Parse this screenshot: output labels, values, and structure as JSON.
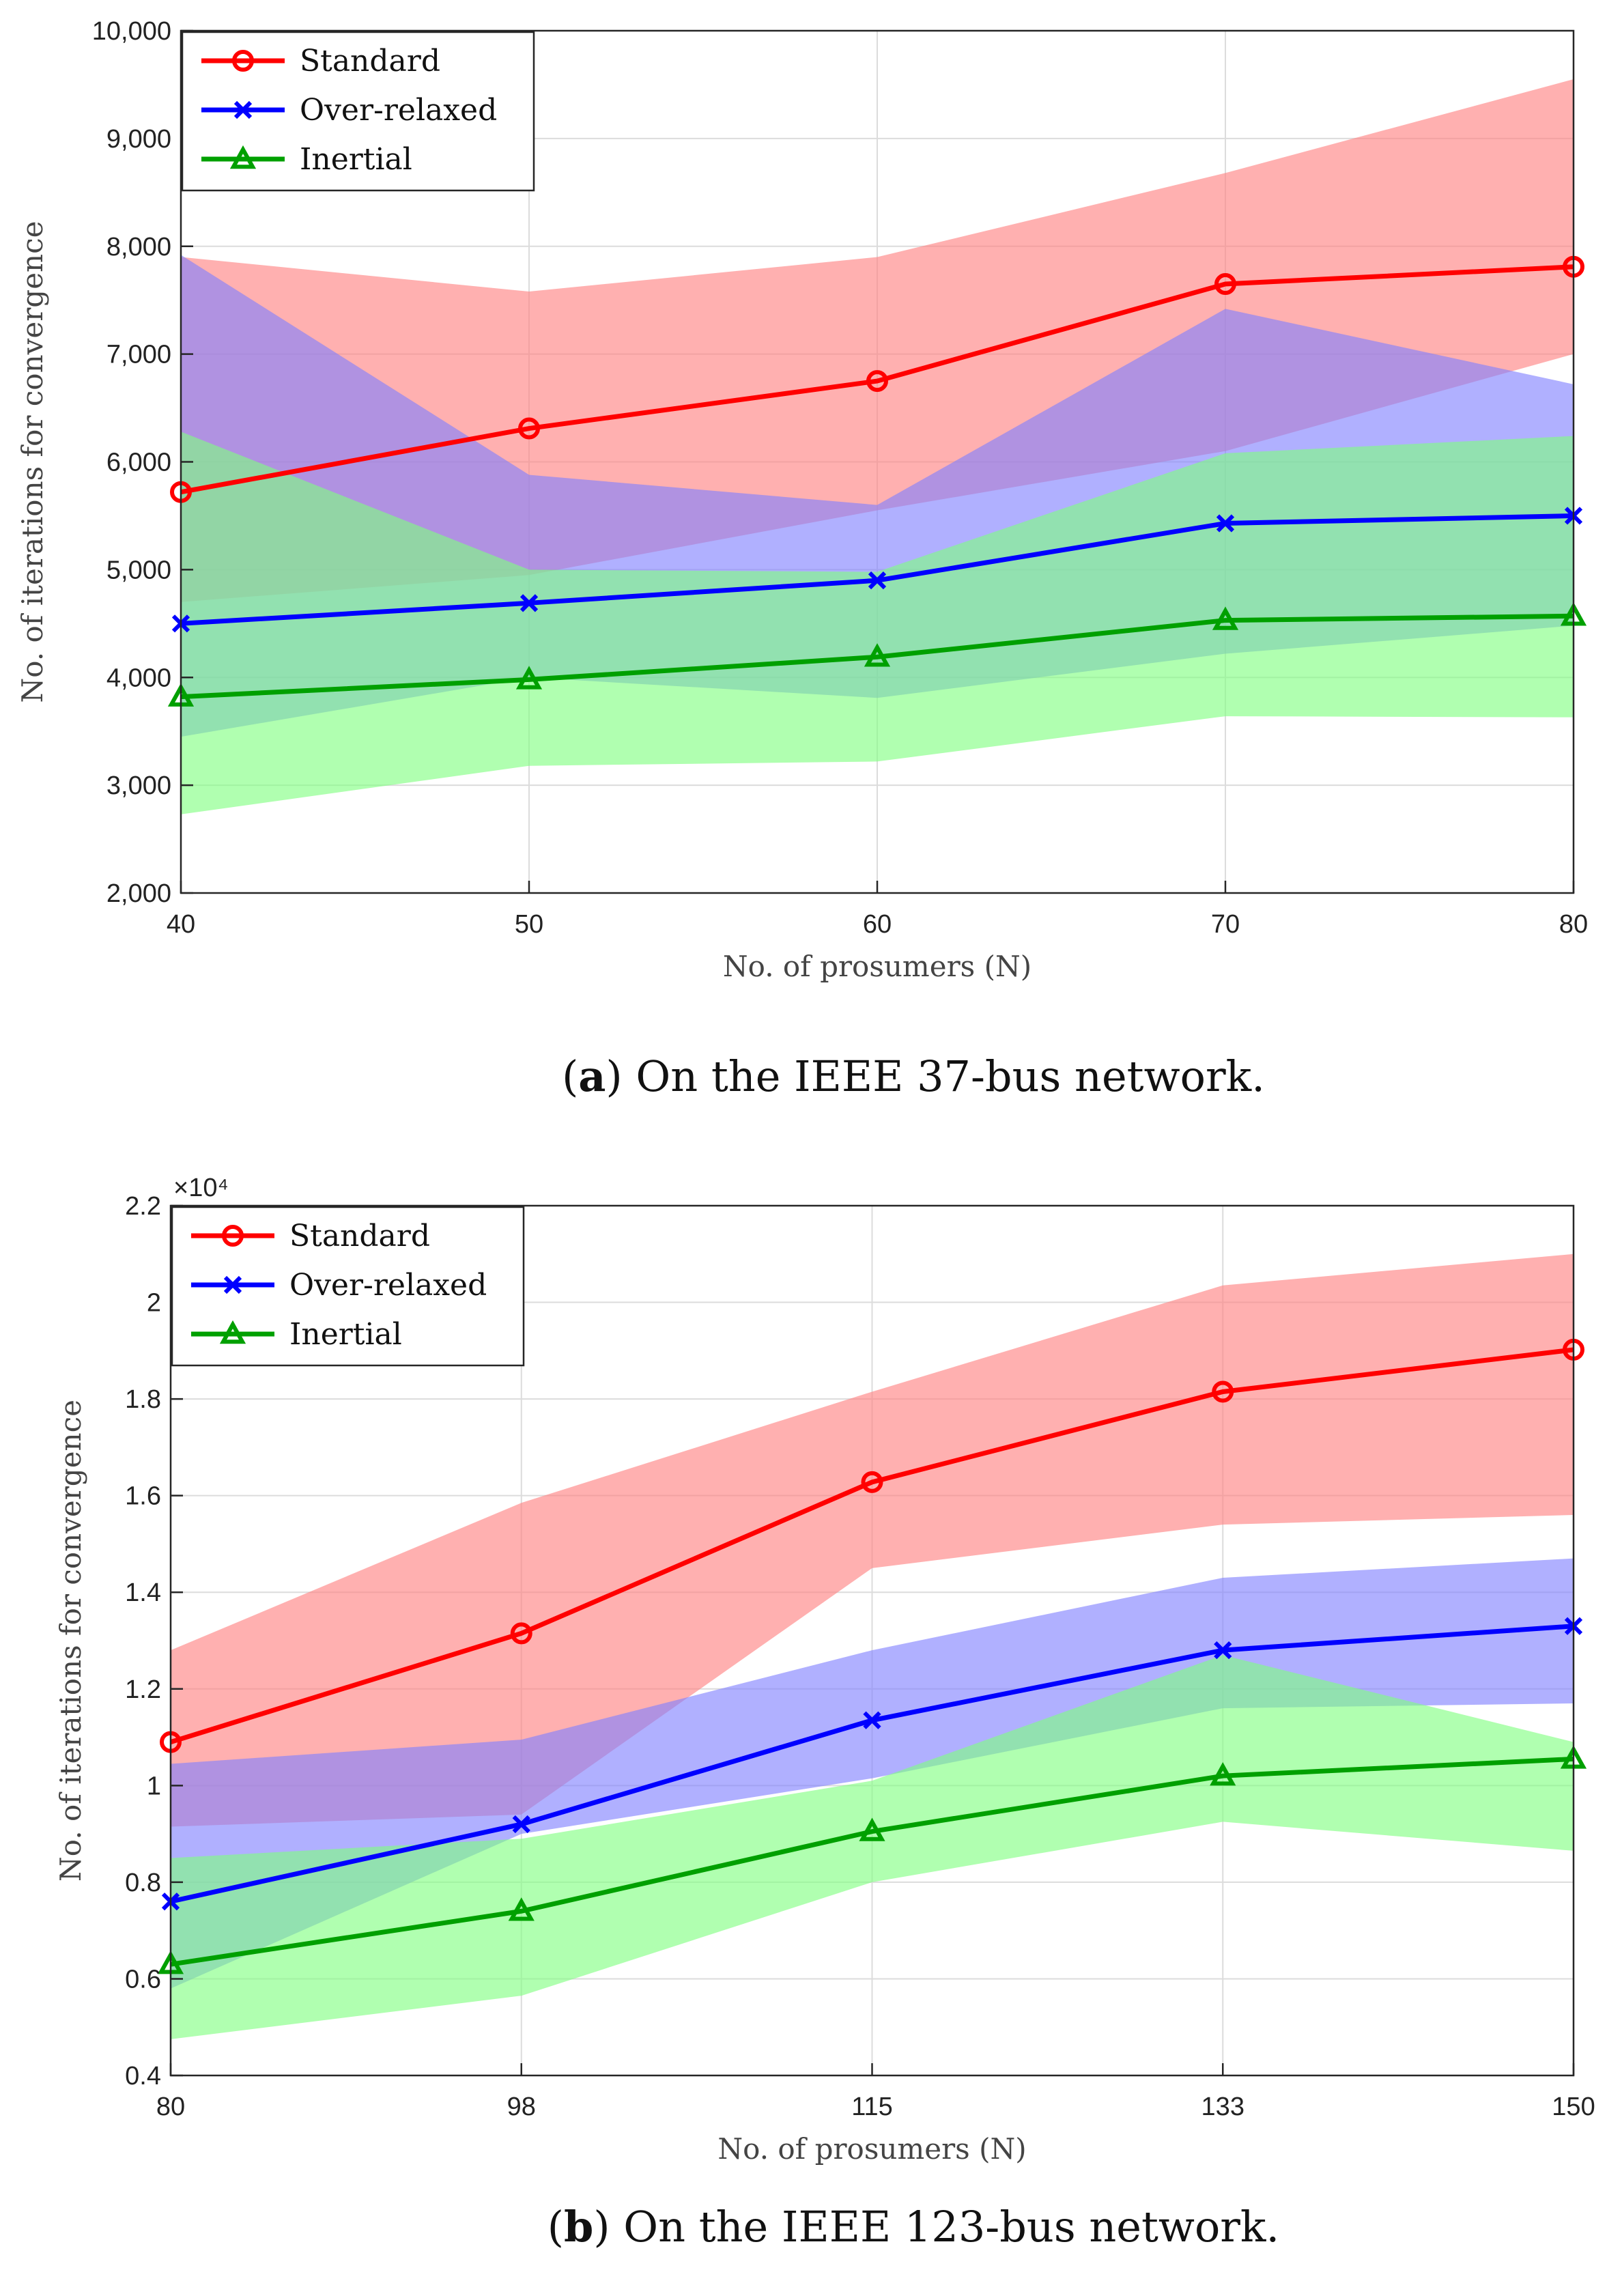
{
  "charts": [
    {
      "id": "a",
      "caption_letter": "a",
      "caption_text": "On the IEEE 37-bus network.",
      "chart_data": {
        "type": "line",
        "title": "",
        "xlabel": "No. of prosumers (N)",
        "ylabel": "No. of iterations for convergence",
        "x": [
          40,
          50,
          60,
          70,
          80
        ],
        "x_tick_labels": [
          "40",
          "50",
          "60",
          "70",
          "80"
        ],
        "ylim": [
          2000,
          10000
        ],
        "y_ticks": [
          2000,
          3000,
          4000,
          5000,
          6000,
          7000,
          8000,
          9000,
          10000
        ],
        "y_tick_labels": [
          "2,000",
          "3,000",
          "4,000",
          "5,000",
          "6,000",
          "7,000",
          "8,000",
          "9,000",
          "10,000"
        ],
        "y_multiplier": "",
        "grid": true,
        "legend_position": "top-left",
        "series": [
          {
            "name": "Standard",
            "color": "#ff0000",
            "band_color": "#ff8080",
            "marker": "circle",
            "values": [
              5720,
              6310,
              6750,
              7650,
              7810
            ],
            "lower": [
              4700,
              4950,
              5550,
              6100,
              7000
            ],
            "upper": [
              7900,
              7580,
              7900,
              8680,
              9550
            ]
          },
          {
            "name": "Over-relaxed",
            "color": "#0000ff",
            "band_color": "#8080ff",
            "marker": "x",
            "values": [
              4500,
              4690,
              4900,
              5430,
              5500
            ],
            "lower": [
              3450,
              4000,
              3810,
              4220,
              4480
            ],
            "upper": [
              7920,
              5880,
              5600,
              7420,
              6720
            ]
          },
          {
            "name": "Inertial",
            "color": "#00a000",
            "band_color": "#80ff80",
            "marker": "triangle",
            "values": [
              3820,
              3980,
              4190,
              4530,
              4570
            ],
            "lower": [
              2730,
              3180,
              3220,
              3640,
              3630
            ],
            "upper": [
              6280,
              5000,
              4980,
              6080,
              6240
            ]
          }
        ]
      }
    },
    {
      "id": "b",
      "caption_letter": "b",
      "caption_text": "On the IEEE 123-bus network.",
      "chart_data": {
        "type": "line",
        "title": "",
        "xlabel": "No. of prosumers (N)",
        "ylabel": "No. of iterations for convergence",
        "x": [
          80,
          98,
          115,
          133,
          150
        ],
        "x_tick_labels": [
          "80",
          "98",
          "115",
          "133",
          "150"
        ],
        "ylim": [
          0.4,
          2.2
        ],
        "y_ticks": [
          0.4,
          0.6,
          0.8,
          1.0,
          1.2,
          1.4,
          1.6,
          1.8,
          2.0,
          2.2
        ],
        "y_tick_labels": [
          "0.4",
          "0.6",
          "0.8",
          "1",
          "1.2",
          "1.4",
          "1.6",
          "1.8",
          "2",
          "2.2"
        ],
        "y_multiplier": "×10⁴",
        "grid": true,
        "legend_position": "top-left",
        "series": [
          {
            "name": "Standard",
            "color": "#ff0000",
            "band_color": "#ff8080",
            "marker": "circle",
            "values": [
              1.09,
              1.315,
              1.628,
              1.815,
              1.902
            ],
            "lower": [
              0.915,
              0.94,
              1.45,
              1.54,
              1.56
            ],
            "upper": [
              1.28,
              1.585,
              1.815,
              2.035,
              2.1
            ]
          },
          {
            "name": "Over-relaxed",
            "color": "#0000ff",
            "band_color": "#8080ff",
            "marker": "x",
            "values": [
              0.76,
              0.92,
              1.135,
              1.28,
              1.33
            ],
            "lower": [
              0.58,
              0.9,
              1.015,
              1.16,
              1.17
            ],
            "upper": [
              1.045,
              1.095,
              1.28,
              1.43,
              1.47
            ]
          },
          {
            "name": "Inertial",
            "color": "#00a000",
            "band_color": "#80ff80",
            "marker": "triangle",
            "values": [
              0.63,
              0.74,
              0.905,
              1.02,
              1.055
            ],
            "lower": [
              0.475,
              0.565,
              0.8,
              0.925,
              0.865
            ],
            "upper": [
              0.85,
              0.89,
              1.01,
              1.27,
              1.09
            ]
          }
        ]
      }
    }
  ]
}
